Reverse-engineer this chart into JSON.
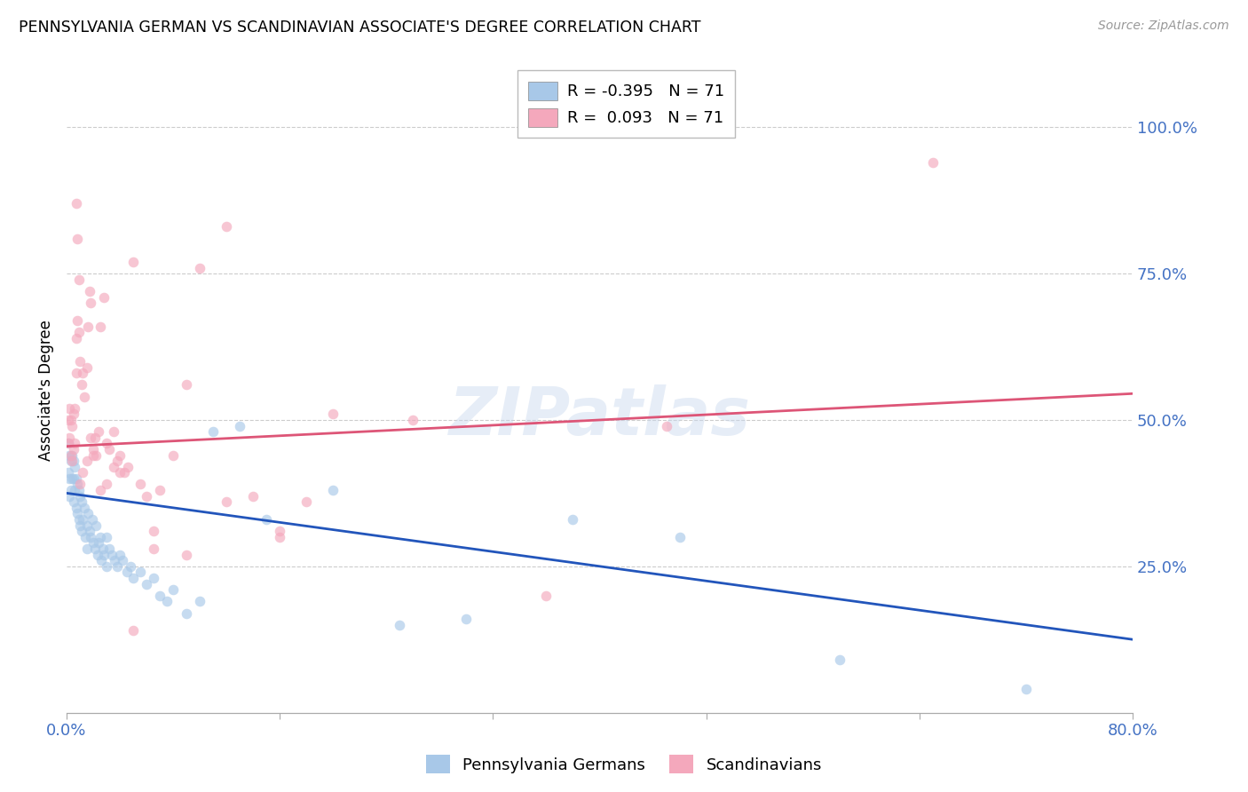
{
  "title": "PENNSYLVANIA GERMAN VS SCANDINAVIAN ASSOCIATE'S DEGREE CORRELATION CHART",
  "source": "Source: ZipAtlas.com",
  "ylabel": "Associate's Degree",
  "legend_label_blue": "Pennsylvania Germans",
  "legend_label_pink": "Scandinavians",
  "watermark": "ZIPatlas",
  "blue_color": "#a8c8e8",
  "pink_color": "#f4a8bc",
  "blue_line_color": "#2255bb",
  "pink_line_color": "#dd5577",
  "dot_size": 70,
  "dot_alpha": 0.65,
  "blue_R": -0.395,
  "pink_R": 0.093,
  "N": 71,
  "xmin": 0.0,
  "xmax": 0.8,
  "ymin": 0.0,
  "ymax": 1.1,
  "blue_line_x0": 0.0,
  "blue_line_y0": 0.375,
  "blue_line_x1": 0.8,
  "blue_line_y1": 0.125,
  "pink_line_x0": 0.0,
  "pink_line_y0": 0.455,
  "pink_line_x1": 0.8,
  "pink_line_y1": 0.545,
  "blue_x": [
    0.001,
    0.001,
    0.002,
    0.002,
    0.002,
    0.003,
    0.003,
    0.004,
    0.004,
    0.005,
    0.005,
    0.005,
    0.006,
    0.006,
    0.007,
    0.007,
    0.008,
    0.008,
    0.009,
    0.009,
    0.01,
    0.01,
    0.011,
    0.011,
    0.012,
    0.013,
    0.014,
    0.015,
    0.015,
    0.016,
    0.017,
    0.018,
    0.019,
    0.02,
    0.021,
    0.022,
    0.023,
    0.024,
    0.025,
    0.026,
    0.027,
    0.028,
    0.03,
    0.03,
    0.032,
    0.034,
    0.036,
    0.038,
    0.04,
    0.042,
    0.045,
    0.048,
    0.05,
    0.055,
    0.06,
    0.065,
    0.07,
    0.075,
    0.08,
    0.09,
    0.1,
    0.11,
    0.13,
    0.15,
    0.2,
    0.25,
    0.3,
    0.38,
    0.46,
    0.58,
    0.72
  ],
  "blue_y": [
    0.46,
    0.41,
    0.44,
    0.4,
    0.37,
    0.43,
    0.38,
    0.44,
    0.4,
    0.43,
    0.4,
    0.36,
    0.42,
    0.38,
    0.4,
    0.35,
    0.39,
    0.34,
    0.38,
    0.33,
    0.37,
    0.32,
    0.36,
    0.31,
    0.33,
    0.35,
    0.3,
    0.32,
    0.28,
    0.34,
    0.31,
    0.3,
    0.33,
    0.29,
    0.28,
    0.32,
    0.27,
    0.29,
    0.3,
    0.26,
    0.28,
    0.27,
    0.3,
    0.25,
    0.28,
    0.27,
    0.26,
    0.25,
    0.27,
    0.26,
    0.24,
    0.25,
    0.23,
    0.24,
    0.22,
    0.23,
    0.2,
    0.19,
    0.21,
    0.17,
    0.19,
    0.48,
    0.49,
    0.33,
    0.38,
    0.15,
    0.16,
    0.33,
    0.3,
    0.09,
    0.04
  ],
  "pink_x": [
    0.001,
    0.001,
    0.002,
    0.002,
    0.003,
    0.003,
    0.004,
    0.004,
    0.005,
    0.005,
    0.006,
    0.006,
    0.007,
    0.007,
    0.008,
    0.009,
    0.01,
    0.011,
    0.012,
    0.013,
    0.015,
    0.016,
    0.017,
    0.018,
    0.02,
    0.021,
    0.022,
    0.024,
    0.025,
    0.028,
    0.03,
    0.032,
    0.035,
    0.038,
    0.04,
    0.043,
    0.046,
    0.05,
    0.055,
    0.06,
    0.065,
    0.07,
    0.08,
    0.09,
    0.1,
    0.12,
    0.14,
    0.16,
    0.18,
    0.2,
    0.007,
    0.008,
    0.009,
    0.01,
    0.012,
    0.015,
    0.018,
    0.02,
    0.025,
    0.03,
    0.035,
    0.04,
    0.05,
    0.065,
    0.09,
    0.12,
    0.16,
    0.26,
    0.36,
    0.45,
    0.65
  ],
  "pink_y": [
    0.5,
    0.46,
    0.52,
    0.47,
    0.5,
    0.44,
    0.49,
    0.43,
    0.51,
    0.45,
    0.52,
    0.46,
    0.64,
    0.58,
    0.67,
    0.65,
    0.6,
    0.56,
    0.58,
    0.54,
    0.59,
    0.66,
    0.72,
    0.7,
    0.45,
    0.47,
    0.44,
    0.48,
    0.66,
    0.71,
    0.46,
    0.45,
    0.48,
    0.43,
    0.44,
    0.41,
    0.42,
    0.77,
    0.39,
    0.37,
    0.28,
    0.38,
    0.44,
    0.56,
    0.76,
    0.83,
    0.37,
    0.31,
    0.36,
    0.51,
    0.87,
    0.81,
    0.74,
    0.39,
    0.41,
    0.43,
    0.47,
    0.44,
    0.38,
    0.39,
    0.42,
    0.41,
    0.14,
    0.31,
    0.27,
    0.36,
    0.3,
    0.5,
    0.2,
    0.49,
    0.94
  ]
}
